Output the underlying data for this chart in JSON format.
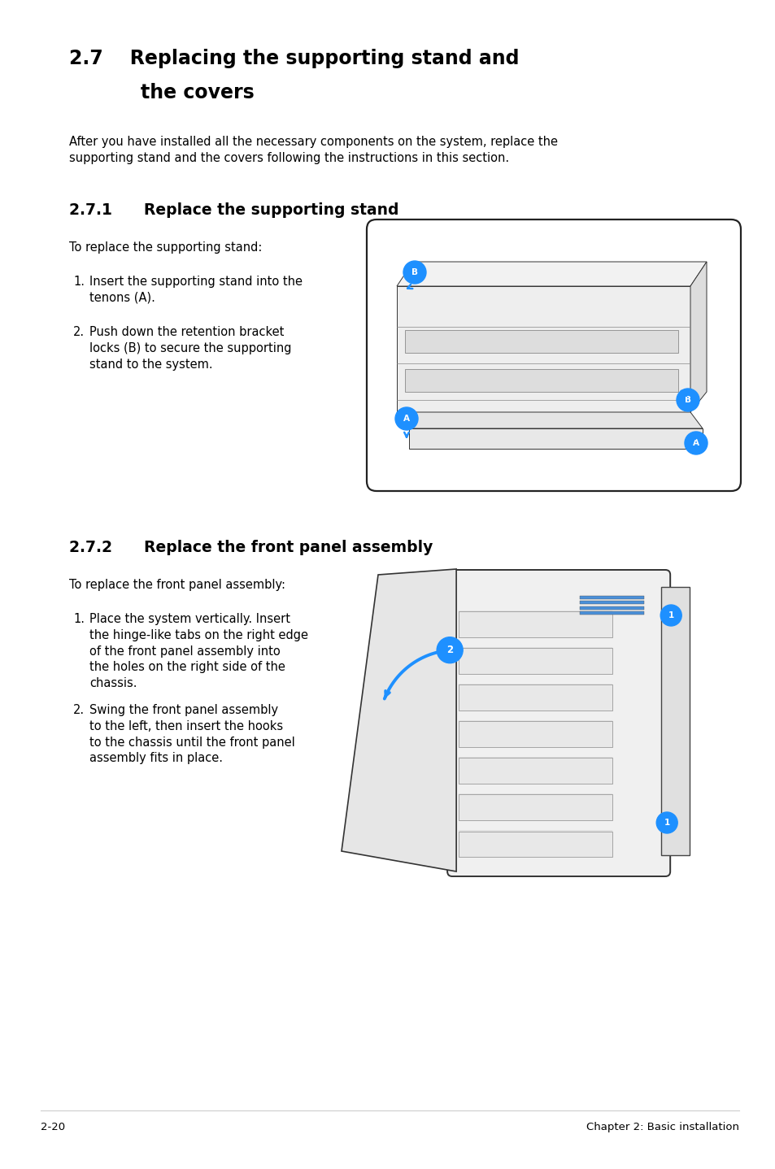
{
  "bg_color": "#ffffff",
  "page_width": 9.54,
  "page_height": 14.38,
  "title_27": "2.7    Replacing the supporting stand and\n        the covers",
  "intro_text": "After you have installed all the necessary components on the system, replace the\nsupporting stand and the covers following the instructions in this section.",
  "title_271": "2.7.1      Replace the supporting stand",
  "sub1_intro": "To replace the supporting stand:",
  "sub1_step1_num": "1.",
  "sub1_step1_text": "Insert the supporting stand into the\ntenons (A).",
  "sub1_step2_num": "2.",
  "sub1_step2_text": "Push down the retention bracket\nlocks (B) to secure the supporting\nstand to the system.",
  "title_272": "2.7.2      Replace the front panel assembly",
  "sub2_intro": "To replace the front panel assembly:",
  "sub2_step1_num": "1.",
  "sub2_step1_text": "Place the system vertically. Insert\nthe hinge-like tabs on the right edge\nof the front panel assembly into\nthe holes on the right side of the\nchassis.",
  "sub2_step2_num": "2.",
  "sub2_step2_text": "Swing the front panel assembly\nto the left, then insert the hooks\nto the chassis until the front panel\nassembly fits in place.",
  "footer_left": "2-20",
  "footer_right": "Chapter 2: Basic installation",
  "blue_color": "#1a8fc1",
  "blue_fill": "#1e90ff",
  "text_color": "#000000",
  "line_color": "#cccccc"
}
